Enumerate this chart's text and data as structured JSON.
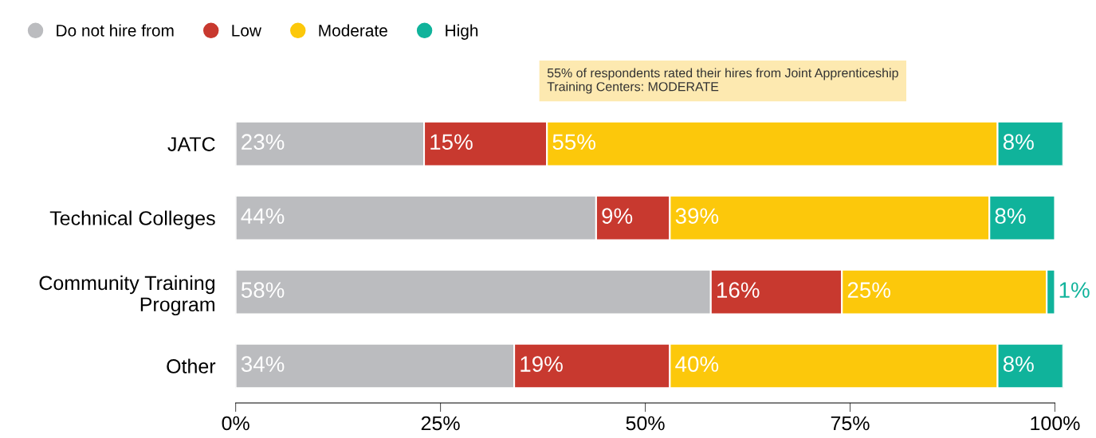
{
  "chart_data": {
    "type": "bar",
    "orientation": "horizontal",
    "stacked": true,
    "categories": [
      "JATC",
      "Technical Colleges",
      "Community Training\nProgram",
      "Other"
    ],
    "series": [
      {
        "name": "Do not hire from",
        "color": "#bbbcbf",
        "values": [
          23,
          44,
          58,
          34
        ],
        "value_labels": [
          "23%",
          "44%",
          "58%",
          "34%"
        ]
      },
      {
        "name": "Low",
        "color": "#c8392f",
        "values": [
          15,
          9,
          16,
          19
        ],
        "value_labels": [
          "15%",
          "9%",
          "16%",
          "19%"
        ]
      },
      {
        "name": "Moderate",
        "color": "#fcc80b",
        "values": [
          55,
          39,
          25,
          40
        ],
        "value_labels": [
          "55%",
          "39%",
          "25%",
          "40%"
        ]
      },
      {
        "name": "High",
        "color": "#10b39b",
        "values": [
          8,
          8,
          1,
          8
        ],
        "value_labels": [
          "8%",
          "8%",
          "1%",
          "8%"
        ]
      }
    ],
    "xlim": [
      0,
      101
    ],
    "xticks": [
      {
        "value": 0,
        "label": "0%"
      },
      {
        "value": 25,
        "label": "25%"
      },
      {
        "value": 50,
        "label": "50%"
      },
      {
        "value": 75,
        "label": "75%"
      },
      {
        "value": 100,
        "label": "100%"
      }
    ],
    "annotations": [
      "55% of respondents rated their hires from Joint Apprenticeship\nTraining Centers: MODERATE"
    ],
    "legend": "top left",
    "grid": false
  }
}
